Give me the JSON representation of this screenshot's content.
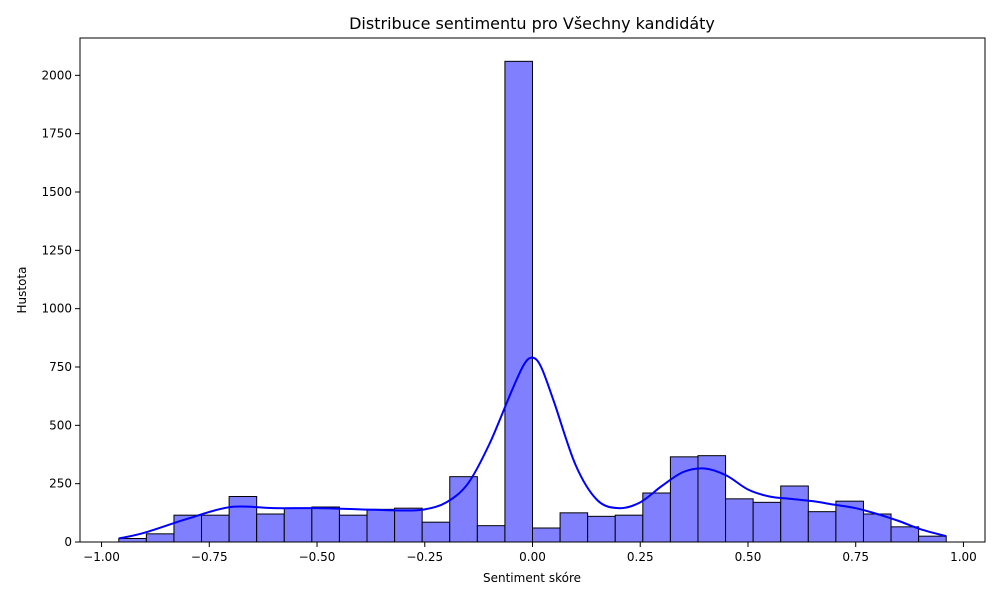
{
  "chart_data": {
    "type": "bar",
    "title": "Distribuce sentimentu pro Všechny kandidáty",
    "xlabel": "Sentiment skóre",
    "ylabel": "Hustota",
    "xlim": [
      -1.05,
      1.05
    ],
    "ylim": [
      0,
      2160
    ],
    "xticks": [
      -1.0,
      -0.75,
      -0.5,
      -0.25,
      0.0,
      0.25,
      0.5,
      0.75,
      1.0
    ],
    "xtick_labels": [
      "−1.00",
      "−0.75",
      "−0.50",
      "−0.25",
      "0.00",
      "0.25",
      "0.50",
      "0.75",
      "1.00"
    ],
    "yticks": [
      0,
      250,
      500,
      750,
      1000,
      1250,
      1500,
      1750,
      2000
    ],
    "ytick_labels": [
      "0",
      "250",
      "500",
      "750",
      "1000",
      "1250",
      "1500",
      "1750",
      "2000"
    ],
    "bin_start": -0.96,
    "bin_width": 0.064,
    "counts": [
      15,
      35,
      115,
      115,
      195,
      120,
      145,
      150,
      115,
      140,
      145,
      85,
      280,
      70,
      2060,
      60,
      125,
      110,
      115,
      210,
      365,
      370,
      185,
      170,
      240,
      130,
      175,
      120,
      65,
      25
    ],
    "kde": {
      "x": [
        -0.96,
        -0.9,
        -0.8,
        -0.7,
        -0.6,
        -0.5,
        -0.4,
        -0.3,
        -0.25,
        -0.2,
        -0.15,
        -0.1,
        -0.05,
        -0.02,
        0.0,
        0.02,
        0.05,
        0.1,
        0.15,
        0.2,
        0.25,
        0.3,
        0.35,
        0.4,
        0.45,
        0.5,
        0.55,
        0.6,
        0.65,
        0.7,
        0.75,
        0.8,
        0.85,
        0.9,
        0.96
      ],
      "y": [
        15,
        40,
        100,
        150,
        145,
        145,
        140,
        135,
        140,
        170,
        250,
        420,
        640,
        760,
        790,
        750,
        600,
        330,
        180,
        145,
        170,
        240,
        300,
        315,
        285,
        225,
        195,
        185,
        175,
        160,
        145,
        120,
        90,
        55,
        25
      ]
    },
    "grid": false,
    "legend": "none",
    "bar_color": "#8080ff",
    "bar_edge_color": "#000000",
    "line_color": "#0000ff"
  }
}
